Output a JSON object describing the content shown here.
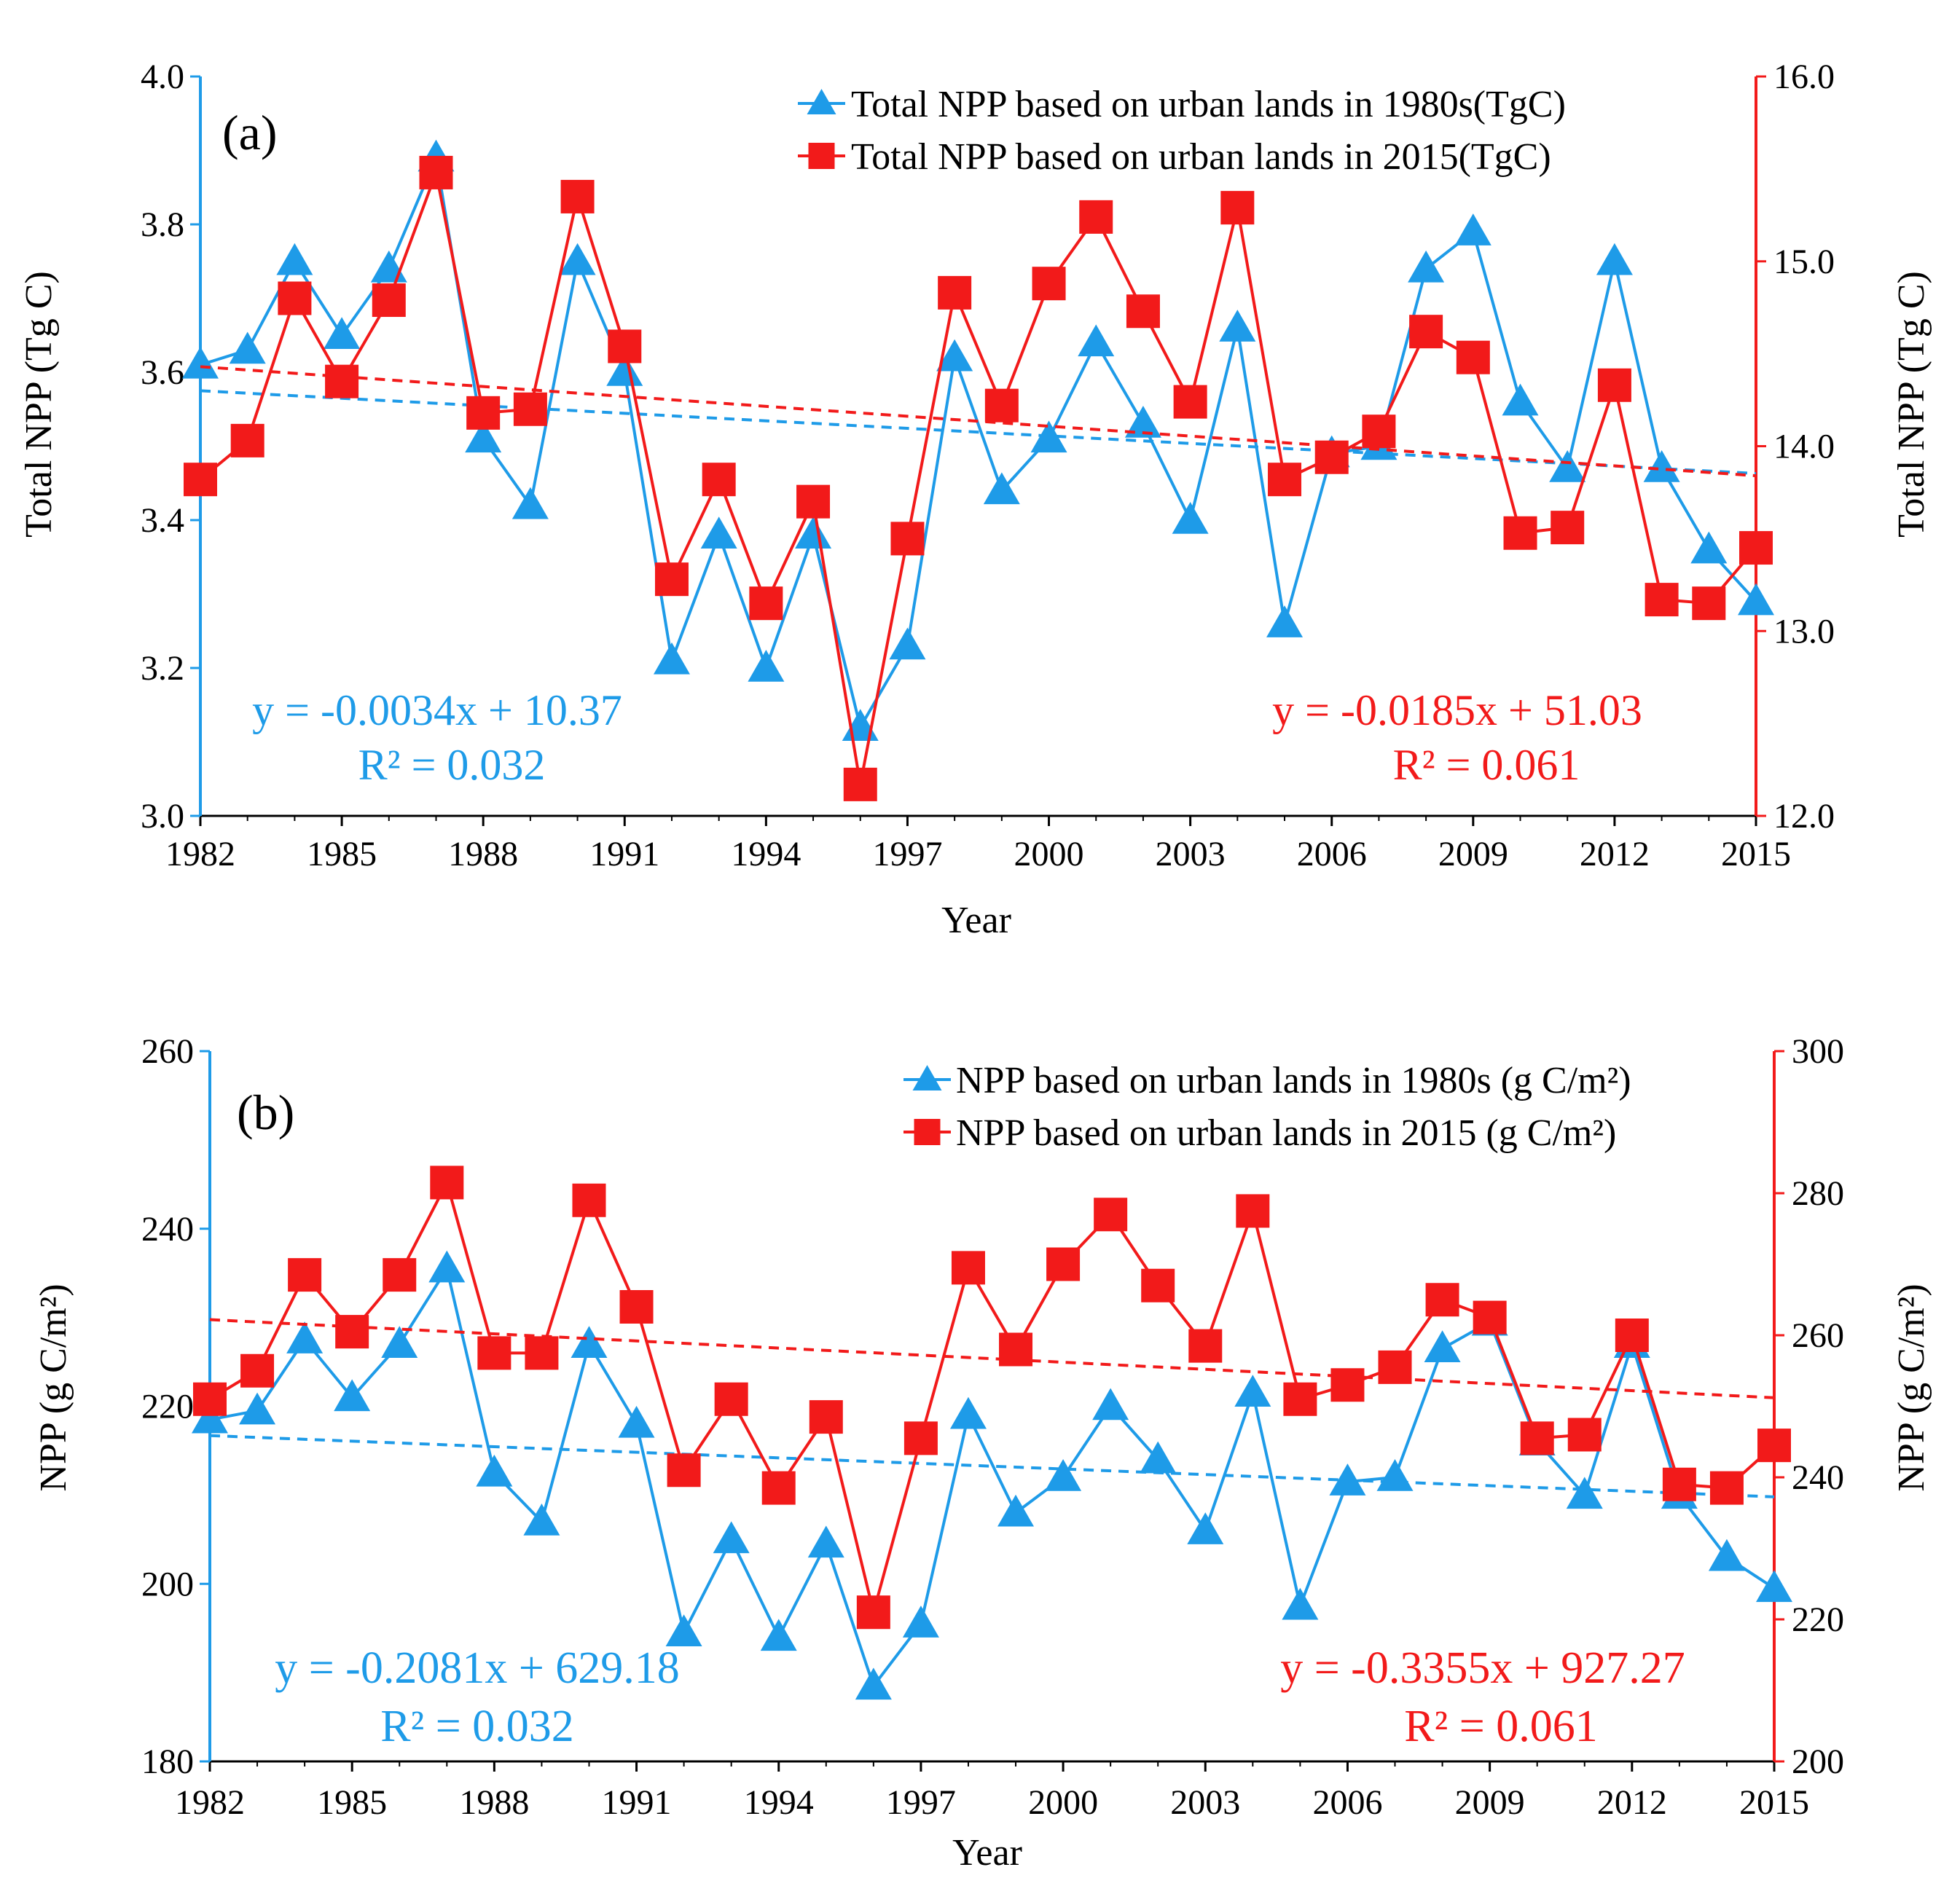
{
  "colors": {
    "blue": "#1E9BE8",
    "red": "#F21A1A",
    "axis": "#000000"
  },
  "chart_data": [
    {
      "type": "line",
      "panel_label": "(a)",
      "xlabel": "Year",
      "xticks": [
        "1982",
        "1985",
        "1988",
        "1991",
        "1994",
        "1997",
        "2000",
        "2003",
        "2006",
        "2009",
        "2012",
        "2015"
      ],
      "ylabel_left": "Total NPP (Tg C)",
      "ylabel_right": "Total NPP (Tg C)",
      "ylim_left": [
        3.0,
        4.0
      ],
      "ylim_right": [
        12.0,
        16.0
      ],
      "yticks_left": [
        "3.0",
        "3.2",
        "3.4",
        "3.6",
        "3.8",
        "4.0"
      ],
      "yticks_right": [
        "12.0",
        "13.0",
        "14.0",
        "15.0",
        "16.0"
      ],
      "legend_position": "top-right",
      "x": [
        1982,
        1983,
        1984,
        1985,
        1986,
        1987,
        1988,
        1989,
        1990,
        1991,
        1992,
        1993,
        1994,
        1995,
        1996,
        1997,
        1998,
        1999,
        2000,
        2001,
        2002,
        2003,
        2004,
        2005,
        2006,
        2007,
        2008,
        2009,
        2010,
        2011,
        2012,
        2013,
        2014,
        2015
      ],
      "series": [
        {
          "name": "Total NPP based on urban lands in 1980s(TgC)",
          "axis": "left",
          "marker": "triangle",
          "color": "#1E9BE8",
          "values": [
            3.61,
            3.63,
            3.75,
            3.65,
            3.74,
            3.89,
            3.51,
            3.42,
            3.75,
            3.6,
            3.21,
            3.38,
            3.2,
            3.38,
            3.12,
            3.23,
            3.62,
            3.44,
            3.51,
            3.64,
            3.53,
            3.4,
            3.66,
            3.26,
            3.49,
            3.5,
            3.74,
            3.79,
            3.56,
            3.47,
            3.75,
            3.47,
            3.36,
            3.29
          ],
          "trend": {
            "start": 3.575,
            "end": 3.463,
            "equation": "y = -0.0034x + 10.37",
            "r2": "R² = 0.032"
          }
        },
        {
          "name": "Total NPP based on urban lands in 2015(TgC)",
          "axis": "right",
          "marker": "square",
          "color": "#F21A1A",
          "values": [
            13.82,
            14.03,
            14.8,
            14.35,
            14.79,
            15.48,
            14.18,
            14.2,
            15.35,
            14.54,
            13.28,
            13.82,
            13.15,
            13.7,
            12.17,
            13.5,
            14.83,
            14.22,
            14.88,
            15.24,
            14.73,
            14.24,
            15.29,
            13.82,
            13.94,
            14.08,
            14.62,
            14.48,
            13.53,
            13.56,
            14.33,
            13.17,
            13.15,
            13.45
          ],
          "trend": {
            "start": 14.43,
            "end": 13.84,
            "equation": "y = -0.0185x + 51.03",
            "r2": "R² = 0.061"
          }
        }
      ]
    },
    {
      "type": "line",
      "panel_label": "(b)",
      "xlabel": "Year",
      "xticks": [
        "1982",
        "1985",
        "1988",
        "1991",
        "1994",
        "1997",
        "2000",
        "2003",
        "2006",
        "2009",
        "2012",
        "2015"
      ],
      "ylabel_left": "NPP (g C/m²)",
      "ylabel_right": "NPP (g C/m²)",
      "ylim_left": [
        180,
        260
      ],
      "ylim_right": [
        200,
        300
      ],
      "yticks_left": [
        "180",
        "200",
        "220",
        "240",
        "260"
      ],
      "yticks_right": [
        "200",
        "220",
        "240",
        "260",
        "280",
        "300"
      ],
      "legend_position": "top-right",
      "x": [
        1982,
        1983,
        1984,
        1985,
        1986,
        1987,
        1988,
        1989,
        1990,
        1991,
        1992,
        1993,
        1994,
        1995,
        1996,
        1997,
        1998,
        1999,
        2000,
        2001,
        2002,
        2003,
        2004,
        2005,
        2006,
        2007,
        2008,
        2009,
        2010,
        2011,
        2012,
        2013,
        2014,
        2015
      ],
      "series": [
        {
          "name": "NPP based on urban lands in 1980s (g C/m²)",
          "axis": "left",
          "marker": "triangle",
          "color": "#1E9BE8",
          "values": [
            218.5,
            219.5,
            227.5,
            221.0,
            227.0,
            235.5,
            212.5,
            207.0,
            227.0,
            218.0,
            194.5,
            205.0,
            194.0,
            204.5,
            188.5,
            195.5,
            219.0,
            208.0,
            212.0,
            220.0,
            214.0,
            206.0,
            221.5,
            197.5,
            211.5,
            212.0,
            226.5,
            229.5,
            216.0,
            210.0,
            227.0,
            210.0,
            203.0,
            199.5
          ],
          "trend": {
            "start": 216.7,
            "end": 209.8,
            "equation": "y = -0.2081x + 629.18",
            "r2": "R² = 0.032"
          }
        },
        {
          "name": "NPP based on urban lands in 2015 (g C/m²)",
          "axis": "right",
          "marker": "square",
          "color": "#F21A1A",
          "values": [
            251.0,
            255.0,
            268.5,
            260.5,
            268.5,
            281.5,
            257.5,
            257.5,
            279.0,
            264.0,
            241.0,
            251.0,
            238.5,
            248.5,
            221.0,
            245.5,
            269.5,
            258.0,
            270.0,
            277.0,
            267.0,
            258.5,
            277.5,
            251.0,
            253.0,
            255.5,
            265.0,
            262.5,
            245.5,
            246.0,
            260.0,
            239.0,
            238.5,
            244.5
          ],
          "trend": {
            "start": 262.2,
            "end": 251.2,
            "equation": "y = -0.3355x + 927.27",
            "r2": "R² = 0.061"
          }
        }
      ]
    }
  ]
}
